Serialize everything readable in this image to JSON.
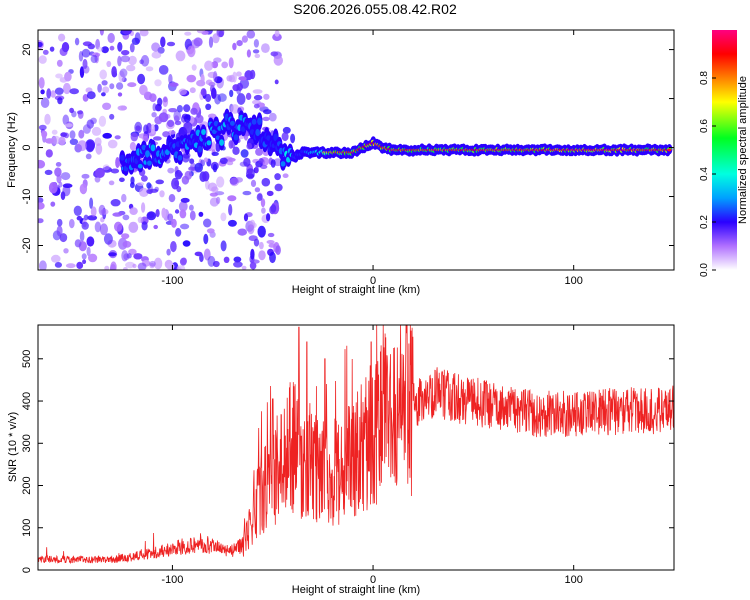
{
  "title": "S206.2026.055.08.42.R02",
  "chart_data": [
    {
      "type": "heatmap",
      "xlabel": "Height of straight line (km)",
      "ylabel": "Frequency (Hz)",
      "xlim": [
        -167,
        150
      ],
      "ylim": [
        -25,
        24
      ],
      "xticks": [
        -100,
        0,
        100
      ],
      "yticks": [
        -20,
        -10,
        0,
        10,
        20
      ],
      "colorbar": {
        "label": "Normalized spectral amplitude",
        "range": [
          0,
          1
        ],
        "ticks": [
          "0.0",
          "0.2",
          "0.4",
          "0.6",
          "0.8"
        ]
      },
      "track": {
        "x": [
          -120,
          -110,
          -100,
          -90,
          -80,
          -70,
          -60,
          -50,
          -45,
          -40,
          -35,
          -30,
          -20,
          -10,
          -5,
          0,
          5,
          10,
          20,
          40,
          60,
          80,
          100,
          120,
          150
        ],
        "freq": [
          -2,
          -2,
          0,
          0,
          3,
          4,
          4,
          1,
          -3,
          -2,
          -1,
          -1,
          -1,
          -1,
          0,
          1,
          0,
          -0.5,
          -0.5,
          -0.5,
          -0.5,
          -0.5,
          -0.5,
          -0.5,
          -0.5
        ],
        "amplitude": [
          0.25,
          0.28,
          0.22,
          0.25,
          0.3,
          0.28,
          0.22,
          0.18,
          0.3,
          0.4,
          0.5,
          0.6,
          0.8,
          0.85,
          0.9,
          0.95,
          0.9,
          0.9,
          0.85,
          0.85,
          0.9,
          0.9,
          0.95,
          0.95,
          0.9
        ]
      }
    },
    {
      "type": "line",
      "xlabel": "Height of straight line (km)",
      "ylabel": "SNR (10 * v/v)",
      "xlim": [
        -167,
        150
      ],
      "ylim": [
        0,
        580
      ],
      "xticks": [
        -100,
        0,
        100
      ],
      "yticks": [
        0,
        100,
        200,
        300,
        400,
        500
      ],
      "color": "#ee2222",
      "envelope": {
        "x": [
          -167,
          -130,
          -115,
          -100,
          -90,
          -80,
          -70,
          -65,
          -60,
          -55,
          -50,
          -45,
          -40,
          -35,
          -30,
          -25,
          -20,
          -15,
          -10,
          -5,
          0,
          5,
          10,
          20,
          30,
          40,
          60,
          80,
          100,
          120,
          150
        ],
        "snr": [
          25,
          25,
          35,
          50,
          60,
          55,
          45,
          60,
          130,
          190,
          220,
          260,
          300,
          250,
          240,
          230,
          230,
          240,
          260,
          290,
          330,
          360,
          370,
          390,
          420,
          410,
          390,
          370,
          370,
          375,
          380
        ]
      },
      "spikes": [
        {
          "x": -37,
          "snr": 575
        },
        {
          "x": -33,
          "snr": 540
        },
        {
          "x": -24,
          "snr": 500
        },
        {
          "x": -1,
          "snr": 540
        },
        {
          "x": -50,
          "snr": 405
        }
      ]
    }
  ]
}
